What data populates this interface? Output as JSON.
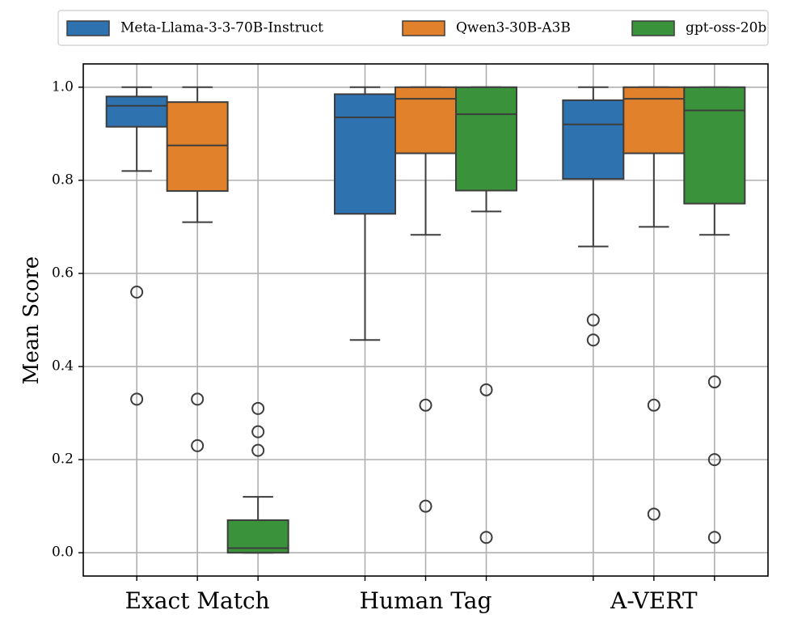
{
  "chart_data": {
    "type": "boxplot",
    "title": "",
    "xlabel": "",
    "ylabel": "Mean Score",
    "ylim": [
      -0.05,
      1.05
    ],
    "yticks": [
      0.0,
      0.2,
      0.4,
      0.6,
      0.8,
      1.0
    ],
    "ytick_labels": [
      "0.0",
      "0.2",
      "0.4",
      "0.6",
      "0.8",
      "1.0"
    ],
    "grid": true,
    "legend_position": "top",
    "categories": [
      "Exact Match",
      "Human Tag",
      "A-VERT"
    ],
    "series": [
      {
        "name": "Meta-Llama-3-3-70B-Instruct",
        "color": "#2f72b0",
        "boxes": [
          {
            "whisker_low": 0.82,
            "q1": 0.915,
            "median": 0.96,
            "q3": 0.98,
            "whisker_high": 1.0,
            "outliers": [
              0.56,
              0.33
            ]
          },
          {
            "whisker_low": 0.457,
            "q1": 0.728,
            "median": 0.935,
            "q3": 0.985,
            "whisker_high": 1.0,
            "outliers": []
          },
          {
            "whisker_low": 0.658,
            "q1": 0.803,
            "median": 0.92,
            "q3": 0.972,
            "whisker_high": 1.0,
            "outliers": [
              0.5,
              0.457
            ]
          }
        ]
      },
      {
        "name": "Qwen3-30B-A3B",
        "color": "#e1812c",
        "boxes": [
          {
            "whisker_low": 0.71,
            "q1": 0.777,
            "median": 0.875,
            "q3": 0.968,
            "whisker_high": 1.0,
            "outliers": [
              0.33,
              0.23
            ]
          },
          {
            "whisker_low": 0.683,
            "q1": 0.858,
            "median": 0.975,
            "q3": 1.0,
            "whisker_high": 1.0,
            "outliers": [
              0.317,
              0.1
            ]
          },
          {
            "whisker_low": 0.7,
            "q1": 0.858,
            "median": 0.975,
            "q3": 1.0,
            "whisker_high": 1.0,
            "outliers": [
              0.317,
              0.083
            ]
          }
        ]
      },
      {
        "name": "gpt-oss-20b",
        "color": "#3a923a",
        "boxes": [
          {
            "whisker_low": 0.0,
            "q1": 0.0,
            "median": 0.01,
            "q3": 0.07,
            "whisker_high": 0.12,
            "outliers": [
              0.31,
              0.26,
              0.22
            ]
          },
          {
            "whisker_low": 0.733,
            "q1": 0.778,
            "median": 0.942,
            "q3": 1.0,
            "whisker_high": 1.0,
            "outliers": [
              0.35,
              0.033
            ]
          },
          {
            "whisker_low": 0.683,
            "q1": 0.75,
            "median": 0.95,
            "q3": 1.0,
            "whisker_high": 1.0,
            "outliers": [
              0.367,
              0.2,
              0.033
            ]
          }
        ]
      }
    ]
  }
}
